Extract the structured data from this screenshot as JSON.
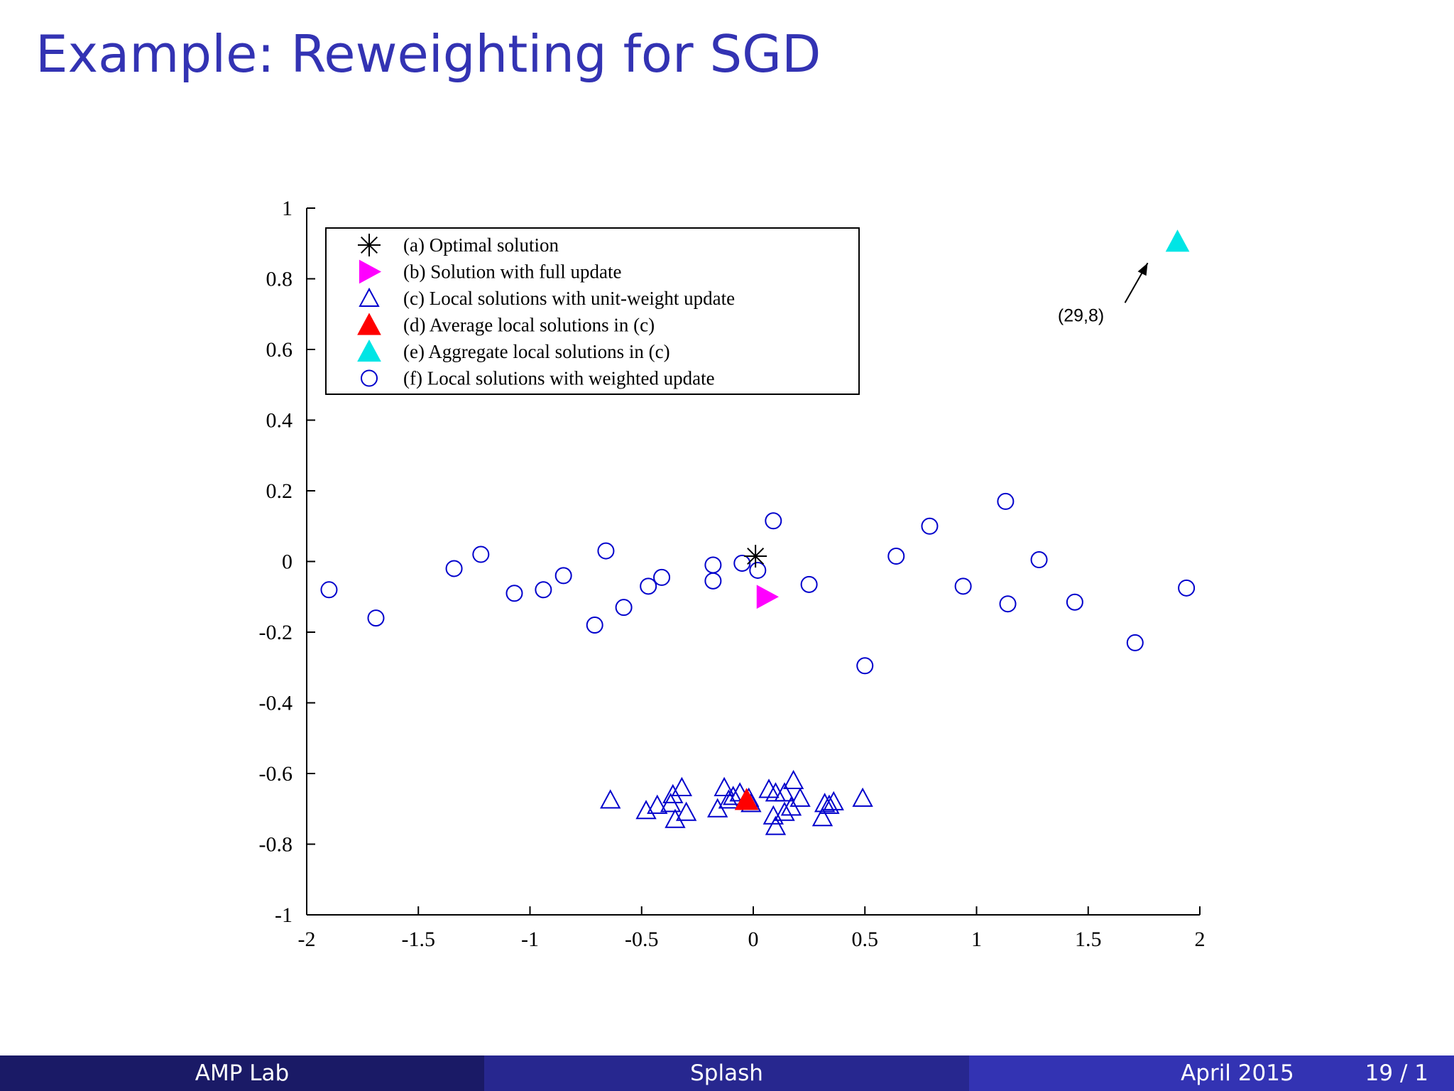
{
  "slide": {
    "title": "Example: Reweighting for SGD"
  },
  "footer": {
    "left": "AMP Lab",
    "center": "Splash",
    "date": "April 2015",
    "page": "19 / 1"
  },
  "colors": {
    "title": "#3333b3",
    "footer_left": "#1a1a66",
    "footer_center": "#27278f",
    "footer_right": "#3333b3",
    "optimal": "#000000",
    "full_update": "#ff00ff",
    "local_unit": "#0000cc",
    "average": "#ff0000",
    "aggregate": "#00e5e5",
    "weighted": "#0000cc"
  },
  "chart_data": {
    "type": "scatter",
    "title": "",
    "xlabel": "",
    "ylabel": "",
    "xlim": [
      -2,
      2
    ],
    "ylim": [
      -1,
      1
    ],
    "xticks": [
      "-2",
      "-1.5",
      "-1",
      "-0.5",
      "0",
      "0.5",
      "1",
      "1.5",
      "2"
    ],
    "xtick_values": [
      -2,
      -1.5,
      -1,
      -0.5,
      0,
      0.5,
      1,
      1.5,
      2
    ],
    "yticks": [
      "1",
      "0.8",
      "0.6",
      "0.4",
      "0.2",
      "0",
      "-0.2",
      "-0.4",
      "-0.6",
      "-0.8",
      "-1"
    ],
    "ytick_values": [
      1,
      0.8,
      0.6,
      0.4,
      0.2,
      0,
      -0.2,
      -0.4,
      -0.6,
      -0.8,
      -1
    ],
    "grid": false,
    "legend_position": "top-left",
    "annotation": {
      "text": "(29,8)"
    },
    "series": [
      {
        "name": "(a) Optimal solution",
        "marker": "star",
        "color": "#000000",
        "points": [
          [
            0.01,
            0.015
          ]
        ]
      },
      {
        "name": "(b) Solution with full update",
        "marker": "triangle-right-filled",
        "color": "#ff00ff",
        "points": [
          [
            0.06,
            -0.1
          ]
        ]
      },
      {
        "name": "(c) Local solutions with unit-weight update",
        "marker": "triangle-open",
        "color": "#0000cc",
        "points": [
          [
            -0.64,
            -0.675
          ],
          [
            -0.48,
            -0.705
          ],
          [
            -0.43,
            -0.69
          ],
          [
            -0.37,
            -0.685
          ],
          [
            -0.36,
            -0.66
          ],
          [
            -0.35,
            -0.73
          ],
          [
            -0.32,
            -0.64
          ],
          [
            -0.3,
            -0.71
          ],
          [
            -0.16,
            -0.7
          ],
          [
            -0.13,
            -0.64
          ],
          [
            -0.11,
            -0.675
          ],
          [
            -0.09,
            -0.665
          ],
          [
            -0.06,
            -0.655
          ],
          [
            -0.02,
            -0.67
          ],
          [
            -0.01,
            -0.685
          ],
          [
            0.07,
            -0.645
          ],
          [
            0.09,
            -0.72
          ],
          [
            0.1,
            -0.655
          ],
          [
            0.1,
            -0.75
          ],
          [
            0.14,
            -0.655
          ],
          [
            0.14,
            -0.71
          ],
          [
            0.17,
            -0.695
          ],
          [
            0.18,
            -0.62
          ],
          [
            0.21,
            -0.67
          ],
          [
            0.31,
            -0.725
          ],
          [
            0.32,
            -0.685
          ],
          [
            0.34,
            -0.69
          ],
          [
            0.36,
            -0.68
          ],
          [
            0.49,
            -0.67
          ]
        ]
      },
      {
        "name": "(d) Average local solutions in (c)",
        "marker": "triangle-filled",
        "color": "#ff0000",
        "points": [
          [
            -0.03,
            -0.675
          ]
        ]
      },
      {
        "name": "(e) Aggregate local solutions in (c)",
        "marker": "triangle-filled",
        "color": "#00e5e5",
        "points": [
          [
            1.9,
            0.905
          ]
        ]
      },
      {
        "name": "(f) Local solutions with weighted update",
        "marker": "circle-open",
        "color": "#0000cc",
        "points": [
          [
            -1.9,
            -0.08
          ],
          [
            -1.69,
            -0.16
          ],
          [
            -1.34,
            -0.02
          ],
          [
            -1.22,
            0.02
          ],
          [
            -1.07,
            -0.09
          ],
          [
            -0.94,
            -0.08
          ],
          [
            -0.85,
            -0.04
          ],
          [
            -0.71,
            -0.18
          ],
          [
            -0.66,
            0.03
          ],
          [
            -0.58,
            -0.13
          ],
          [
            -0.47,
            -0.07
          ],
          [
            -0.41,
            -0.045
          ],
          [
            -0.18,
            -0.01
          ],
          [
            -0.18,
            -0.055
          ],
          [
            -0.05,
            -0.005
          ],
          [
            0.02,
            -0.025
          ],
          [
            0.09,
            0.115
          ],
          [
            0.25,
            -0.065
          ],
          [
            0.5,
            -0.295
          ],
          [
            0.64,
            0.015
          ],
          [
            0.79,
            0.1
          ],
          [
            0.94,
            -0.07
          ],
          [
            1.13,
            0.17
          ],
          [
            1.14,
            -0.12
          ],
          [
            1.28,
            0.005
          ],
          [
            1.44,
            -0.115
          ],
          [
            1.71,
            -0.23
          ],
          [
            1.94,
            -0.075
          ]
        ]
      }
    ]
  }
}
